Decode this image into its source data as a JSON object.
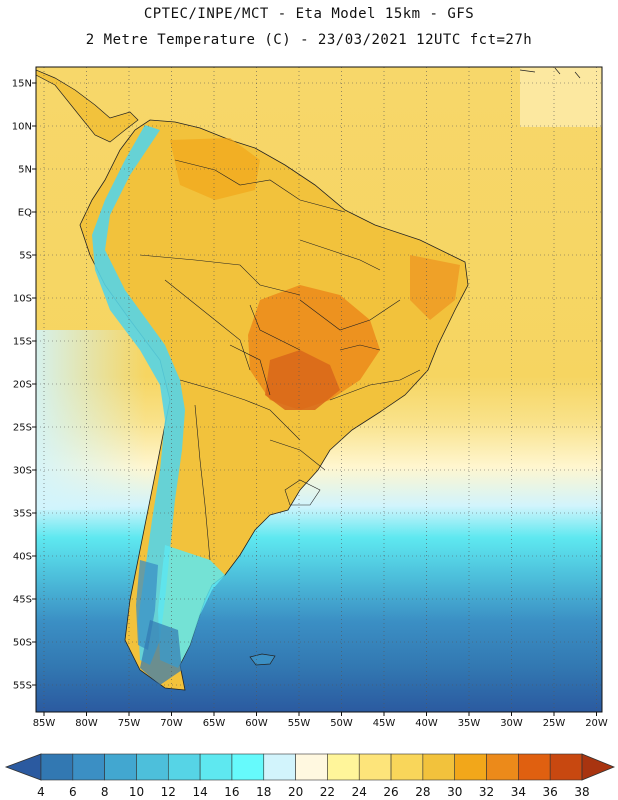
{
  "header": {
    "line1": "CPTEC/INPE/MCT -  Eta Model 15km - GFS",
    "line2": "2 Metre Temperature (C) - 23/03/2021 12UTC fct=27h"
  },
  "axes": {
    "lat_labels": [
      "15N",
      "10N",
      "5N",
      "EQ",
      "5S",
      "10S",
      "15S",
      "20S",
      "25S",
      "30S",
      "35S",
      "40S",
      "45S",
      "50S",
      "55S"
    ],
    "lon_labels": [
      "85W",
      "80W",
      "75W",
      "70W",
      "65W",
      "60W",
      "55W",
      "50W",
      "45W",
      "40W",
      "35W",
      "30W",
      "25W",
      "20W"
    ]
  },
  "colorbar": {
    "labels": [
      "4",
      "6",
      "8",
      "10",
      "12",
      "14",
      "16",
      "18",
      "20",
      "22",
      "24",
      "26",
      "28",
      "30",
      "32",
      "34",
      "36",
      "38"
    ],
    "colors": [
      "#2b5aa0",
      "#3278b2",
      "#3b8fc4",
      "#42a7d0",
      "#4dbfdb",
      "#56d4e6",
      "#5ee8f0",
      "#66fafc",
      "#d2f4fc",
      "#fff8e0",
      "#fff59a",
      "#fde47a",
      "#f9d65a",
      "#f2c23c",
      "#f2a71a",
      "#ec8a1a",
      "#e06010",
      "#c84810",
      "#a83410"
    ]
  }
}
